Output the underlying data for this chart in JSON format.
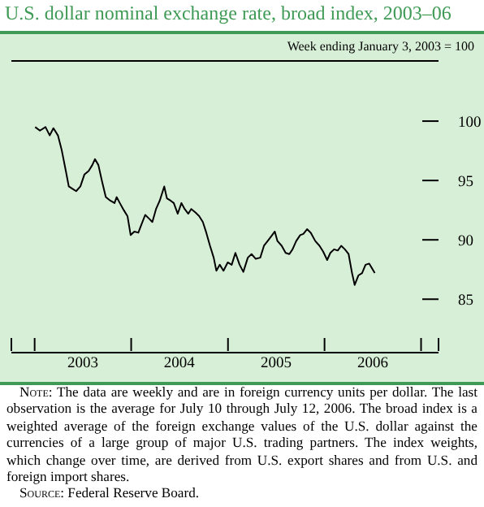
{
  "chart_data": {
    "type": "line",
    "title": "U.S. dollar nominal exchange rate, broad index, 2003–06",
    "subtitle": "Week ending January 3, 2003 = 100",
    "x": [
      "2003-01-03",
      "2003-01-21",
      "2003-02-11",
      "2003-02-27",
      "2003-03-13",
      "2003-03-30",
      "2003-04-13",
      "2003-04-29",
      "2003-05-10",
      "2003-05-24",
      "2003-06-07",
      "2003-06-23",
      "2003-07-08",
      "2003-07-24",
      "2003-08-07",
      "2003-08-17",
      "2003-08-30",
      "2003-09-13",
      "2003-09-27",
      "2003-10-14",
      "2003-10-30",
      "2003-11-07",
      "2003-11-19",
      "2003-12-04",
      "2003-12-18",
      "2003-12-30",
      "2004-01-13",
      "2004-01-28",
      "2004-02-09",
      "2004-02-23",
      "2004-03-08",
      "2004-03-21",
      "2004-04-04",
      "2004-04-18",
      "2004-05-05",
      "2004-05-15",
      "2004-05-29",
      "2004-06-10",
      "2004-06-25",
      "2004-07-09",
      "2004-07-21",
      "2004-08-04",
      "2004-08-15",
      "2004-08-31",
      "2004-09-14",
      "2004-09-28",
      "2004-10-11",
      "2004-10-25",
      "2004-11-08",
      "2004-11-18",
      "2004-12-01",
      "2004-12-15",
      "2004-12-31",
      "2005-01-15",
      "2005-01-29",
      "2005-02-14",
      "2005-02-28",
      "2005-03-17",
      "2005-03-31",
      "2005-04-16",
      "2005-05-03",
      "2005-05-17",
      "2005-05-31",
      "2005-06-17",
      "2005-06-27",
      "2005-07-07",
      "2005-07-23",
      "2005-08-07",
      "2005-08-21",
      "2005-09-02",
      "2005-09-16",
      "2005-10-01",
      "2005-10-13",
      "2005-10-27",
      "2005-11-10",
      "2005-11-27",
      "2005-12-13",
      "2005-12-27",
      "2006-01-11",
      "2006-01-23",
      "2006-02-06",
      "2006-02-20",
      "2006-03-05",
      "2006-03-19",
      "2006-04-02",
      "2006-04-15",
      "2006-04-25",
      "2006-05-09",
      "2006-05-23",
      "2006-06-05",
      "2006-06-19",
      "2006-07-10"
    ],
    "series": [
      {
        "color": "#000000",
        "values": [
          99.5,
          99.2,
          99.5,
          98.8,
          99.4,
          98.8,
          97.6,
          95.8,
          94.5,
          94.3,
          94.1,
          94.5,
          95.5,
          95.8,
          96.3,
          96.8,
          96.3,
          94.9,
          93.6,
          93.3,
          93.1,
          93.6,
          93.1,
          92.5,
          92.0,
          90.4,
          90.7,
          90.6,
          91.3,
          92.1,
          91.8,
          91.5,
          92.6,
          93.3,
          94.5,
          93.5,
          93.3,
          93.1,
          92.2,
          93.1,
          92.6,
          92.2,
          92.6,
          92.3,
          92.0,
          91.5,
          90.6,
          89.5,
          88.5,
          87.4,
          87.9,
          87.4,
          88.1,
          87.9,
          88.9,
          87.9,
          87.3,
          88.5,
          88.8,
          88.4,
          88.5,
          89.5,
          89.9,
          90.4,
          90.7,
          89.9,
          89.5,
          88.9,
          88.8,
          89.2,
          89.9,
          90.4,
          90.5,
          90.9,
          90.6,
          89.9,
          89.5,
          89.0,
          88.3,
          88.9,
          89.2,
          89.1,
          89.5,
          89.2,
          88.8,
          87.2,
          86.2,
          87.0,
          87.2,
          87.9,
          88.0,
          87.2
        ]
      }
    ],
    "ylim": [
      80.5,
      105
    ],
    "yticks": [
      85,
      90,
      95,
      100
    ],
    "xlim": [
      "2002-10-05",
      "2007-03-08"
    ],
    "xticks": [
      {
        "value": "2002-10-05",
        "label": null
      },
      {
        "value": "2003-01-01",
        "label": null
      },
      {
        "value": "2003-07-02",
        "label": "2003"
      },
      {
        "value": "2004-01-01",
        "label": null
      },
      {
        "value": "2004-07-01",
        "label": "2004"
      },
      {
        "value": "2005-01-01",
        "label": null
      },
      {
        "value": "2005-07-02",
        "label": "2005"
      },
      {
        "value": "2006-01-01",
        "label": null
      },
      {
        "value": "2006-07-02",
        "label": "2006"
      },
      {
        "value": "2007-01-01",
        "label": null
      },
      {
        "value": "2007-03-08",
        "label": null
      }
    ],
    "grid": false,
    "legend": false,
    "marker": "none",
    "line_style": "solid",
    "annotations": [
      "Note: The data are weekly and are in foreign currency units per dollar. The last observation is the average for July 10 through July 12, 2006. The broad index is a weighted average of the foreign exchange values of the U.S. dollar against the currencies of a large group of major U.S. trading partners. The index weights, which change over time, are derived from U.S. export shares and from U.S. and foreign import shares.",
      "Source: Federal Reserve Board."
    ]
  }
}
